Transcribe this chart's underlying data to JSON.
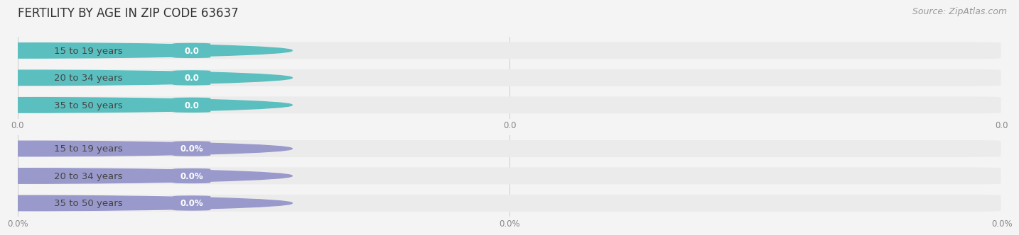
{
  "title": "FERTILITY BY AGE IN ZIP CODE 63637",
  "source": "Source: ZipAtlas.com",
  "top_section": {
    "categories": [
      "15 to 19 years",
      "20 to 34 years",
      "35 to 50 years"
    ],
    "values": [
      0.0,
      0.0,
      0.0
    ],
    "bar_color": "#5bbfbf",
    "tick_labels": [
      "0.0",
      "0.0",
      "0.0"
    ],
    "value_suffix": ""
  },
  "bottom_section": {
    "categories": [
      "15 to 19 years",
      "20 to 34 years",
      "35 to 50 years"
    ],
    "values": [
      0.0,
      0.0,
      0.0
    ],
    "bar_color": "#9999cc",
    "tick_labels": [
      "0.0%",
      "0.0%",
      "0.0%"
    ],
    "value_suffix": "%"
  },
  "bg_color": "#f4f4f4",
  "row_bg_color": "#ebebeb",
  "white_pill_color": "#ffffff",
  "bar_height": 0.62,
  "figsize": [
    14.06,
    3.3
  ],
  "dpi": 100,
  "title_fontsize": 12,
  "label_fontsize": 9.5,
  "badge_fontsize": 8.5,
  "tick_fontsize": 8.5,
  "source_fontsize": 9
}
